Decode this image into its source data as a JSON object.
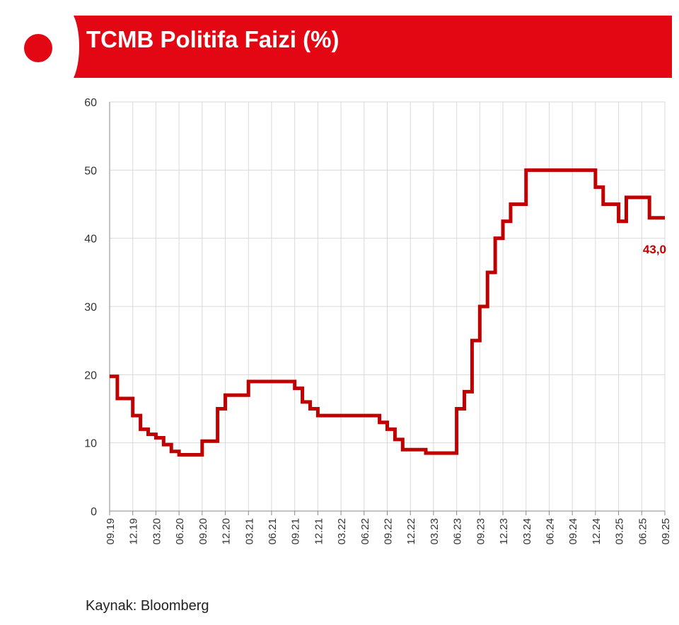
{
  "header": {
    "title": "TCMB Politifa Faizi (%)"
  },
  "source": "Kaynak: Bloomberg",
  "colors": {
    "accent": "#e30613",
    "line": "#c00000",
    "grid": "#d9d9d9"
  },
  "chart_data": {
    "type": "line",
    "title": "TCMB Politifa Faizi (%)",
    "xlabel": "",
    "ylabel": "",
    "ylim": [
      0,
      60
    ],
    "yticks": [
      "0",
      "10",
      "20",
      "30",
      "40",
      "50",
      "60"
    ],
    "xticks": [
      "09.19",
      "12.19",
      "03.20",
      "06.20",
      "09.20",
      "12.20",
      "03.21",
      "06.21",
      "09.21",
      "12.21",
      "03.22",
      "06.22",
      "09.22",
      "12.22",
      "03.23",
      "06.23",
      "09.23",
      "12.23",
      "03.24",
      "06.24",
      "09.24",
      "12.24",
      "03.25",
      "06.25",
      "09.25"
    ],
    "grid": true,
    "annotation": {
      "text": "43,0",
      "value": 43.0
    },
    "series": [
      {
        "name": "",
        "x": [
          "2019-09",
          "2019-10",
          "2019-12",
          "2020-01",
          "2020-02",
          "2020-03",
          "2020-04",
          "2020-05",
          "2020-06",
          "2020-09",
          "2020-11",
          "2020-12",
          "2021-01",
          "2021-03",
          "2021-09",
          "2021-10",
          "2021-11",
          "2021-12",
          "2022-08",
          "2022-09",
          "2022-10",
          "2022-11",
          "2023-02",
          "2023-06",
          "2023-07",
          "2023-08",
          "2023-09",
          "2023-10",
          "2023-11",
          "2023-12",
          "2024-01",
          "2024-03",
          "2024-12",
          "2025-01",
          "2025-03",
          "2025-04",
          "2025-06",
          "2025-07",
          "2025-09"
        ],
        "values": [
          19.75,
          16.5,
          14,
          12,
          11.25,
          10.75,
          9.75,
          8.75,
          8.25,
          10.25,
          15,
          17,
          17,
          19,
          18,
          16,
          15,
          14,
          13,
          12,
          10.5,
          9,
          8.5,
          15,
          17.5,
          25,
          30,
          35,
          40,
          42.5,
          45,
          50,
          47.5,
          45,
          42.5,
          46,
          46,
          43,
          43
        ]
      }
    ]
  }
}
